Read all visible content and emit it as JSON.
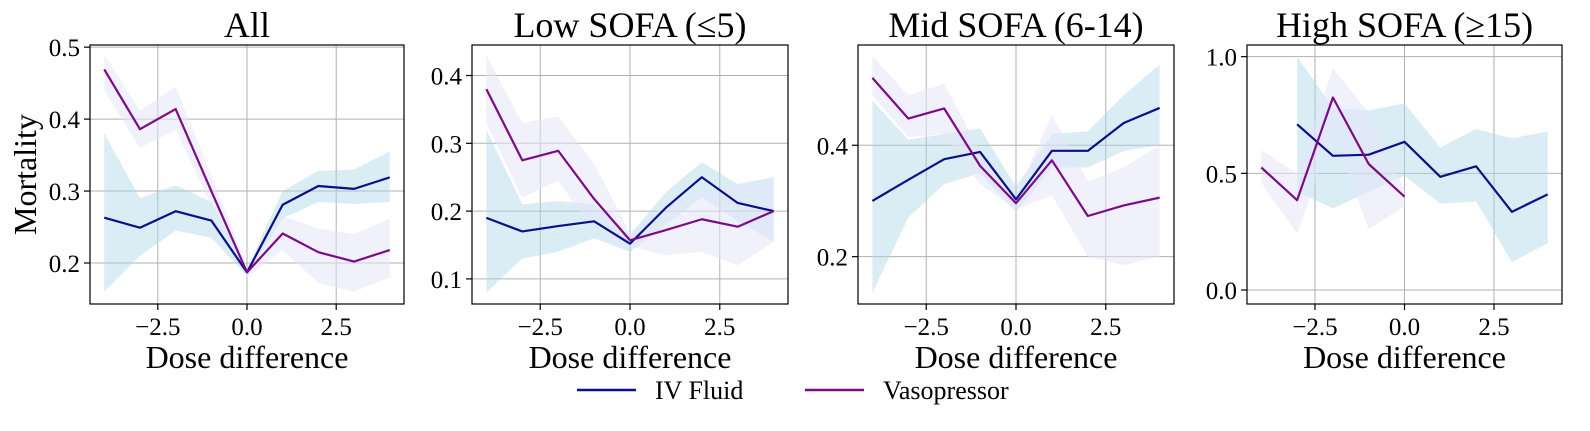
{
  "colors": {
    "iv": "#0b0f8a",
    "vaso": "#7d0a86",
    "iv_band": "#add8e6",
    "vaso_band": "#e6e6fa"
  },
  "legend": {
    "iv_label": "IV Fluid",
    "vaso_label": "Vasopressor"
  },
  "chart_data": [
    {
      "type": "line",
      "title": "All",
      "xlabel": "Dose difference",
      "ylabel": "Mortality",
      "xlim": [
        -4.4,
        4.4
      ],
      "ylim": [
        0.143,
        0.503
      ],
      "xticks": [
        -2.5,
        0.0,
        2.5
      ],
      "xtick_labels": [
        "−2.5",
        "0.0",
        "2.5"
      ],
      "yticks": [
        0.2,
        0.3,
        0.4,
        0.5
      ],
      "ytick_labels": [
        "0.2",
        "0.3",
        "0.4",
        "0.5"
      ],
      "grid": true,
      "series": [
        {
          "name": "IV Fluid",
          "x": [
            -4,
            -3,
            -2,
            -1,
            0,
            1,
            2,
            3,
            4
          ],
          "y": [
            0.263,
            0.249,
            0.272,
            0.259,
            0.187,
            0.281,
            0.307,
            0.303,
            0.319
          ],
          "lower": [
            0.16,
            0.21,
            0.245,
            0.235,
            0.182,
            0.262,
            0.285,
            0.282,
            0.285
          ],
          "upper": [
            0.38,
            0.29,
            0.308,
            0.285,
            0.192,
            0.3,
            0.328,
            0.33,
            0.355
          ]
        },
        {
          "name": "Vasopressor",
          "x": [
            -4,
            -3,
            -2,
            -1,
            0,
            1,
            2,
            3,
            4
          ],
          "y": [
            0.469,
            0.386,
            0.414,
            0.3,
            0.187,
            0.241,
            0.215,
            0.202,
            0.218
          ],
          "lower": [
            0.44,
            0.36,
            0.385,
            0.28,
            0.18,
            0.218,
            0.172,
            0.16,
            0.18
          ],
          "upper": [
            0.49,
            0.412,
            0.445,
            0.322,
            0.195,
            0.265,
            0.248,
            0.24,
            0.262
          ]
        }
      ]
    },
    {
      "type": "line",
      "title": "Low SOFA (≤5)",
      "xlabel": "Dose difference",
      "ylabel": "",
      "xlim": [
        -4.4,
        4.4
      ],
      "ylim": [
        0.063,
        0.445
      ],
      "xticks": [
        -2.5,
        0.0,
        2.5
      ],
      "xtick_labels": [
        "−2.5",
        "0.0",
        "2.5"
      ],
      "yticks": [
        0.1,
        0.2,
        0.3,
        0.4
      ],
      "ytick_labels": [
        "0.1",
        "0.2",
        "0.3",
        "0.4"
      ],
      "grid": true,
      "series": [
        {
          "name": "IV Fluid",
          "x": [
            -4,
            -3,
            -2,
            -1,
            0,
            1,
            2,
            3,
            4
          ],
          "y": [
            0.19,
            0.17,
            0.178,
            0.185,
            0.152,
            0.205,
            0.25,
            0.212,
            0.2
          ],
          "lower": [
            0.08,
            0.13,
            0.14,
            0.16,
            0.14,
            0.18,
            0.22,
            0.185,
            0.155
          ],
          "upper": [
            0.32,
            0.21,
            0.215,
            0.21,
            0.165,
            0.228,
            0.272,
            0.24,
            0.25
          ]
        },
        {
          "name": "Vasopressor",
          "x": [
            -4,
            -3,
            -2,
            -1,
            0,
            1,
            2,
            3,
            4
          ],
          "y": [
            0.38,
            0.275,
            0.289,
            0.218,
            0.157,
            0.172,
            0.188,
            0.177,
            0.2
          ],
          "lower": [
            0.33,
            0.22,
            0.245,
            0.17,
            0.148,
            0.135,
            0.14,
            0.12,
            0.155
          ],
          "upper": [
            0.43,
            0.33,
            0.34,
            0.27,
            0.168,
            0.21,
            0.23,
            0.235,
            0.25
          ]
        }
      ]
    },
    {
      "type": "line",
      "title": "Mid SOFA (6-14)",
      "xlabel": "Dose difference",
      "ylabel": "",
      "xlim": [
        -4.4,
        4.4
      ],
      "ylim": [
        0.115,
        0.58
      ],
      "xticks": [
        -2.5,
        0.0,
        2.5
      ],
      "xtick_labels": [
        "−2.5",
        "0.0",
        "2.5"
      ],
      "yticks": [
        0.2,
        0.4
      ],
      "ytick_labels": [
        "0.2",
        "0.4"
      ],
      "grid": true,
      "series": [
        {
          "name": "IV Fluid",
          "x": [
            -4,
            -3,
            -2,
            -1,
            0,
            1,
            2,
            3,
            4
          ],
          "y": [
            0.3,
            0.338,
            0.375,
            0.388,
            0.303,
            0.39,
            0.39,
            0.44,
            0.467
          ],
          "lower": [
            0.135,
            0.27,
            0.33,
            0.35,
            0.28,
            0.36,
            0.36,
            0.39,
            0.4
          ],
          "upper": [
            0.48,
            0.41,
            0.42,
            0.43,
            0.325,
            0.42,
            0.425,
            0.49,
            0.545
          ]
        },
        {
          "name": "Vasopressor",
          "x": [
            -4,
            -3,
            -2,
            -1,
            0,
            1,
            2,
            3,
            4
          ],
          "y": [
            0.521,
            0.448,
            0.466,
            0.363,
            0.296,
            0.373,
            0.273,
            0.292,
            0.306
          ],
          "lower": [
            0.49,
            0.415,
            0.42,
            0.33,
            0.285,
            0.31,
            0.2,
            0.185,
            0.2
          ],
          "upper": [
            0.56,
            0.49,
            0.51,
            0.39,
            0.31,
            0.455,
            0.335,
            0.36,
            0.4
          ]
        }
      ]
    },
    {
      "type": "line",
      "title": "High SOFA (≥15)",
      "xlabel": "Dose difference",
      "ylabel": "",
      "xlim": [
        -4.4,
        4.4
      ],
      "ylim": [
        -0.06,
        1.05
      ],
      "xticks": [
        -2.5,
        0.0,
        2.5
      ],
      "xtick_labels": [
        "−2.5",
        "0.0",
        "2.5"
      ],
      "yticks": [
        0.0,
        0.5,
        1.0
      ],
      "ytick_labels": [
        "0.0",
        "0.5",
        "1.0"
      ],
      "grid": true,
      "series": [
        {
          "name": "IV Fluid",
          "x": [
            -3,
            -2,
            -1,
            0,
            1,
            2,
            3,
            4
          ],
          "y": [
            0.71,
            0.575,
            0.58,
            0.635,
            0.485,
            0.53,
            0.335,
            0.41
          ],
          "lower": [
            0.42,
            0.35,
            0.42,
            0.49,
            0.37,
            0.38,
            0.12,
            0.2
          ],
          "upper": [
            1.0,
            0.78,
            0.77,
            0.8,
            0.61,
            0.69,
            0.65,
            0.68
          ]
        },
        {
          "name": "Vasopressor",
          "x": [
            -4,
            -3,
            -2,
            -1,
            0
          ],
          "y": [
            0.525,
            0.385,
            0.825,
            0.54,
            0.4
          ],
          "lower": [
            0.46,
            0.24,
            0.68,
            0.26,
            0.36
          ],
          "upper": [
            0.6,
            0.5,
            0.95,
            0.76,
            0.43
          ]
        }
      ]
    }
  ]
}
